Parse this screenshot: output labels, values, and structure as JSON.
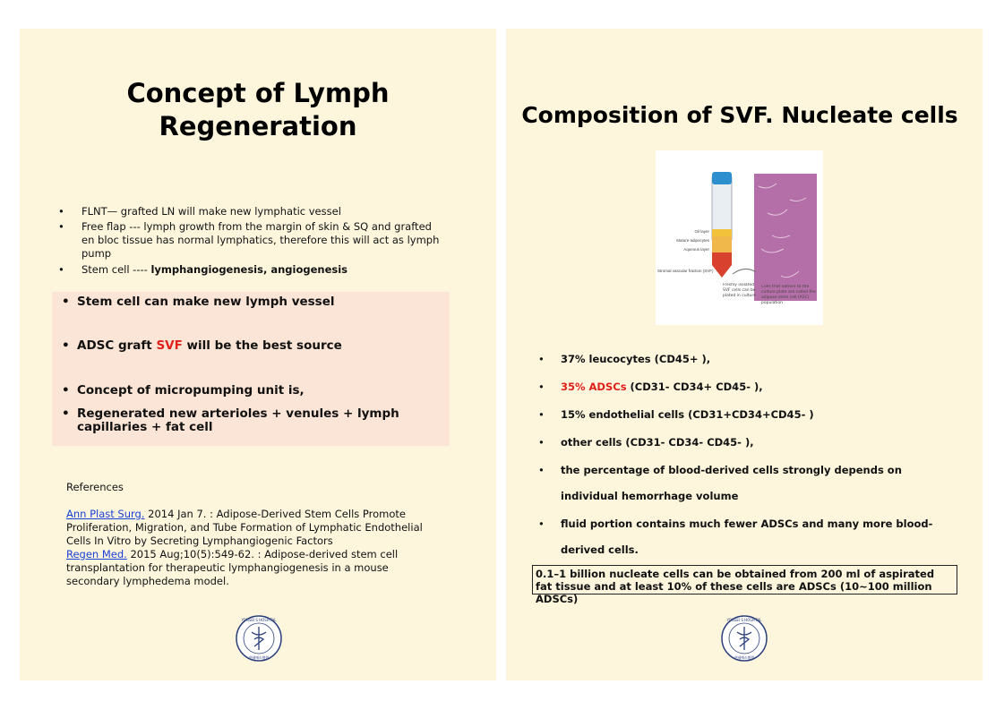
{
  "left": {
    "title_lines": [
      "Concept of Lymph",
      "Regeneration"
    ],
    "bullets": [
      "FLNT—  grafted LN will make new lymphatic vessel",
      "Free flap --- lymph growth from the margin of skin & SQ and grafted en bloc tissue has normal lymphatics, therefore this will act as lymph pump"
    ],
    "stem_cell": {
      "prefix": "Stem cell ---- ",
      "bold": "lymphangiogenesis, angiogenesis"
    },
    "box": {
      "item1": "Stem cell can make new lymph vessel",
      "item2": {
        "prefix": "ADSC  graft  ",
        "highlight": "SVF",
        "suffix": " will be the best source"
      },
      "item3": "Concept of micropumping unit  is,",
      "item4": "Regenerated new arterioles + venules + lymph capillaries + fat cell"
    },
    "references": {
      "heading": "References",
      "items": [
        {
          "link": "Ann Plast Surg.",
          "text": " 2014 Jan 7. : Adipose-Derived Stem Cells Promote Proliferation, Migration, and Tube Formation of Lymphatic Endothelial Cells In Vitro by Secreting Lymphangiogenic Factors"
        },
        {
          "link": "Regen Med.",
          "text": " 2015 Aug;10(5):549-62. : Adipose-derived stem cell transplantation for therapeutic lymphangiogenesis in a mouse secondary lymphedema model."
        }
      ]
    }
  },
  "right": {
    "title": "Composition of  SVF. Nucleate cells",
    "image_labels": [
      "Oil layer",
      "Mature adipocytes",
      "Aqueous layer",
      "Stromal vascular fraction (SVF)",
      "Freshly isolated SVF cells can be plated in culture",
      "Cells that adhere to the culture plate are called the adipose stem cell (ASC) population"
    ],
    "bullets": [
      "37% leucocytes (CD45+ ),",
      {
        "highlight": "35% ADSCs",
        "suffix": " (CD31- CD34+ CD45- ),"
      },
      "15% endothelial cells (CD31+CD34+CD45- )",
      "other cells (CD31- CD34- CD45- ),",
      "the percentage of blood-derived cells strongly depends on individual hemorrhage volume",
      "fluid portion contains much fewer ADSCs and many more blood-derived cells."
    ],
    "summary": "0.1–1 billion nucleate cells can be obtained from 200 ml of aspirated fat tissue and at least 10% of these cells are ADSCs (10~100 million ADSCs)"
  },
  "logo": {
    "name": "YONSEI S HOSPITAL",
    "korean": "연세에스병원"
  }
}
